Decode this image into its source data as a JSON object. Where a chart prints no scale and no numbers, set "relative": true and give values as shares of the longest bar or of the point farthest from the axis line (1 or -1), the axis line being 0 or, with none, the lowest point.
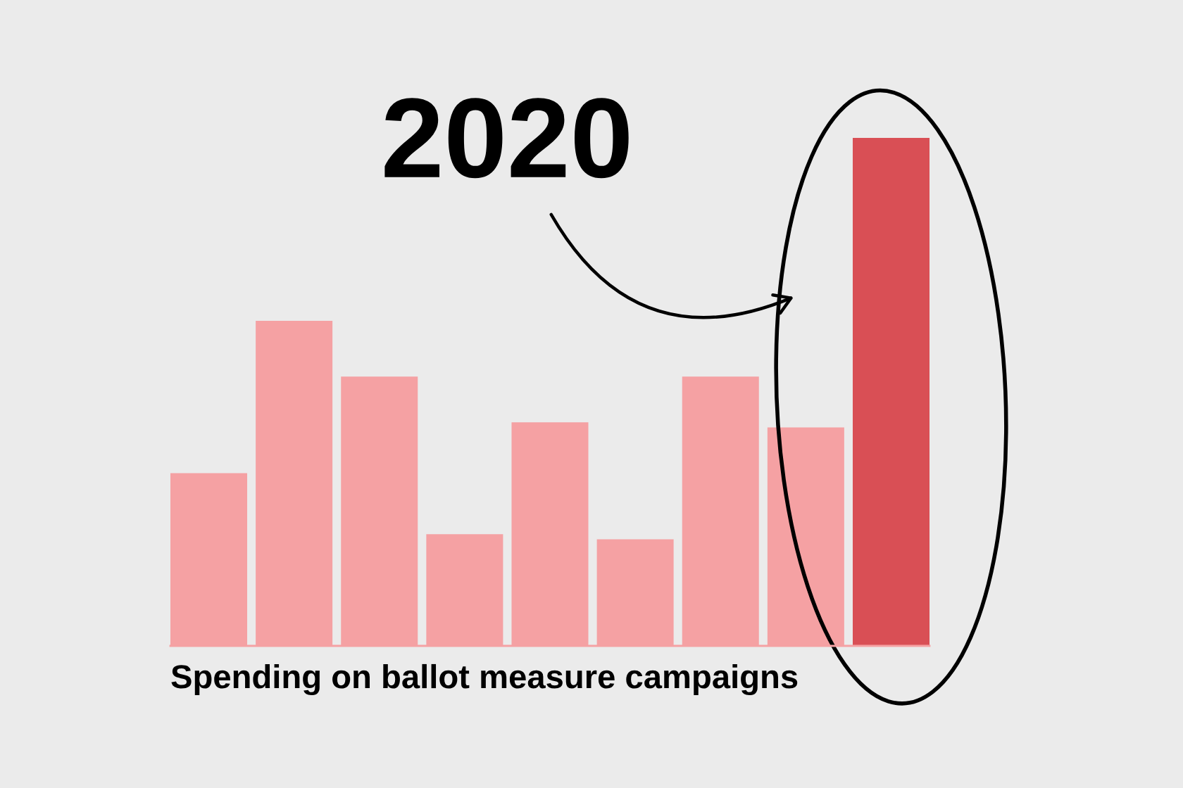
{
  "chart_data": {
    "type": "bar",
    "relative": true,
    "title": "Spending on ballot measure campaigns",
    "categories": [
      null,
      null,
      null,
      null,
      null,
      null,
      null,
      null,
      null
    ],
    "values": [
      0.34,
      0.64,
      0.53,
      0.22,
      0.44,
      0.21,
      0.53,
      0.43,
      1
    ],
    "colors": [
      "#f5a1a3",
      "#f5a1a3",
      "#f5a1a3",
      "#f5a1a3",
      "#f5a1a3",
      "#f5a1a3",
      "#f5a1a3",
      "#f5a1a3",
      "#d94f55"
    ],
    "annotations": [
      "2020"
    ]
  }
}
